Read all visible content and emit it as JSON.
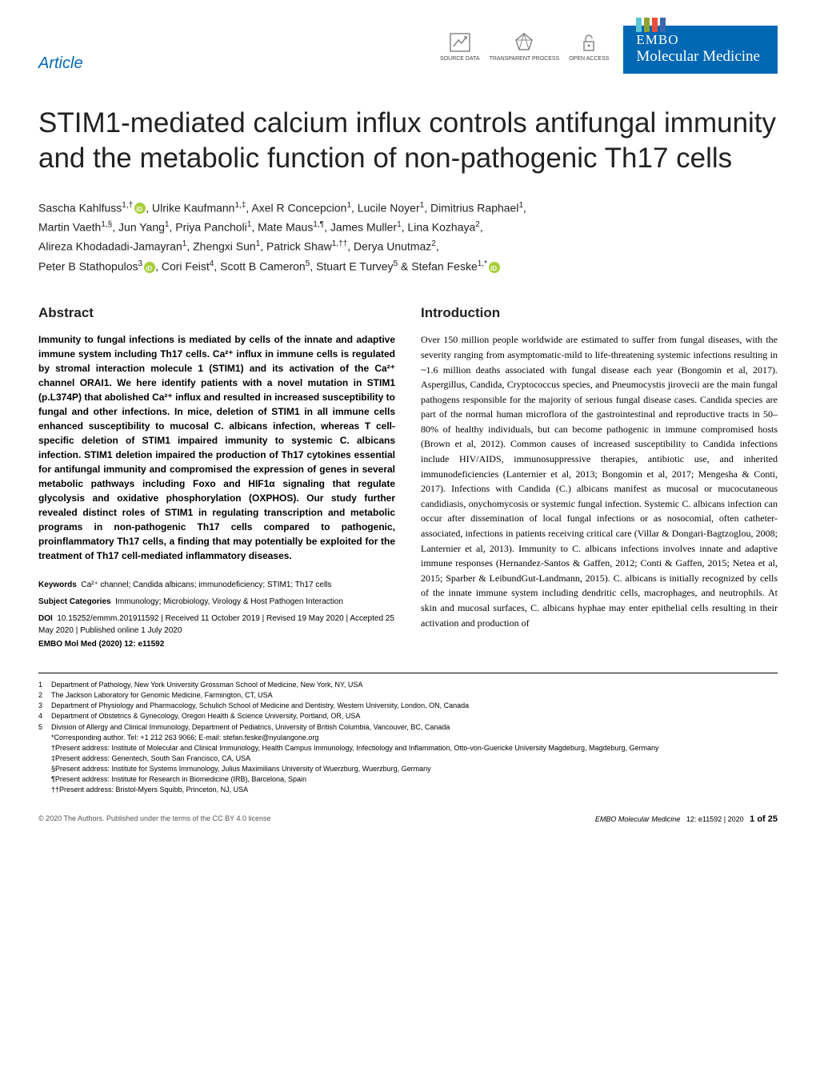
{
  "header": {
    "article_label": "Article",
    "badges": {
      "source_data": "SOURCE\nDATA",
      "transparent": "TRANSPARENT\nPROCESS",
      "open_access": "OPEN\nACCESS"
    },
    "journal": {
      "embo": "EMBO",
      "name": "Molecular Medicine",
      "stripe_colors": [
        "#5bc7d4",
        "#8fa02f",
        "#e94f3c",
        "#3b68b0"
      ]
    }
  },
  "title": "STIM1-mediated calcium influx controls antifungal immunity and the metabolic function of non-pathogenic Th17 cells",
  "authors_line1": "Sascha Kahlfuss",
  "authors_sup1": "1,†",
  "authors_line1b": ", Ulrike Kaufmann",
  "authors_sup1b": "1,‡",
  "authors_line1c": ", Axel R Concepcion",
  "authors_sup1c": "1",
  "authors_line1d": ", Lucile Noyer",
  "authors_sup1d": "1",
  "authors_line1e": ", Dimitrius Raphael",
  "authors_sup1e": "1",
  "authors_line1f": ",",
  "authors_line2": "Martin Vaeth",
  "authors_sup2": "1,§",
  "authors_line2b": ", Jun Yang",
  "authors_sup2b": "1",
  "authors_line2c": ", Priya Pancholi",
  "authors_sup2c": "1",
  "authors_line2d": ", Mate Maus",
  "authors_sup2d": "1,¶",
  "authors_line2e": ", James Muller",
  "authors_sup2e": "1",
  "authors_line2f": ", Lina Kozhaya",
  "authors_sup2f": "2",
  "authors_line2g": ",",
  "authors_line3": "Alireza Khodadadi-Jamayran",
  "authors_sup3": "1",
  "authors_line3b": ", Zhengxi Sun",
  "authors_sup3b": "1",
  "authors_line3c": ", Patrick Shaw",
  "authors_sup3c": "1,††",
  "authors_line3d": ", Derya Unutmaz",
  "authors_sup3d": "2",
  "authors_line3e": ",",
  "authors_line4": "Peter B Stathopulos",
  "authors_sup4": "3",
  "authors_line4b": ", Cori Feist",
  "authors_sup4b": "4",
  "authors_line4c": ", Scott B Cameron",
  "authors_sup4c": "5",
  "authors_line4d": ", Stuart E Turvey",
  "authors_sup4d": "5",
  "authors_line4e": " & Stefan Feske",
  "authors_sup4e": "1,*",
  "abstract_heading": "Abstract",
  "abstract_body": "Immunity to fungal infections is mediated by cells of the innate and adaptive immune system including Th17 cells. Ca²⁺ influx in immune cells is regulated by stromal interaction molecule 1 (STIM1) and its activation of the Ca²⁺ channel ORAI1. We here identify patients with a novel mutation in STIM1 (p.L374P) that abolished Ca²⁺ influx and resulted in increased susceptibility to fungal and other infections. In mice, deletion of STIM1 in all immune cells enhanced susceptibility to mucosal C. albicans infection, whereas T cell-specific deletion of STIM1 impaired immunity to systemic C. albicans infection. STIM1 deletion impaired the production of Th17 cytokines essential for antifungal immunity and compromised the expression of genes in several metabolic pathways including Foxo and HIF1α signaling that regulate glycolysis and oxidative phosphorylation (OXPHOS). Our study further revealed distinct roles of STIM1 in regulating transcription and metabolic programs in non-pathogenic Th17 cells compared to pathogenic, proinflammatory Th17 cells, a finding that may potentially be exploited for the treatment of Th17 cell-mediated inflammatory diseases.",
  "keywords_label": "Keywords",
  "keywords_body": "Ca²⁺ channel; Candida albicans; immunodeficiency; STIM1; Th17 cells",
  "subject_label": "Subject Categories",
  "subject_body": "Immunology; Microbiology, Virology & Host Pathogen Interaction",
  "doi_label": "DOI",
  "doi_body": "10.15252/emmm.201911592 | Received 11 October 2019 | Revised 19 May 2020 | Accepted 25 May 2020 | Published online 1 July 2020",
  "pubinfo": "EMBO Mol Med (2020) 12: e11592",
  "intro_heading": "Introduction",
  "intro_body": "Over 150 million people worldwide are estimated to suffer from fungal diseases, with the severity ranging from asymptomatic-mild to life-threatening systemic infections resulting in ~1.6 million deaths associated with fungal disease each year (Bongomin et al, 2017). Aspergillus, Candida, Cryptococcus species, and Pneumocystis jirovecii are the main fungal pathogens responsible for the majority of serious fungal disease cases. Candida species are part of the normal human microflora of the gastrointestinal and reproductive tracts in 50–80% of healthy individuals, but can become pathogenic in immune compromised hosts (Brown et al, 2012). Common causes of increased susceptibility to Candida infections include HIV/AIDS, immunosuppressive therapies, antibiotic use, and inherited immunodeficiencies (Lanternier et al, 2013; Bongomin et al, 2017; Mengesha & Conti, 2017). Infections with Candida (C.) albicans manifest as mucosal or mucocutaneous candidiasis, onychomycosis or systemic fungal infection. Systemic C. albicans infection can occur after dissemination of local fungal infections or as nosocomial, often catheter-associated, infections in patients receiving critical care (Villar & Dongari-Bagtzoglou, 2008; Lanternier et al, 2013). Immunity to C. albicans infections involves innate and adaptive immune responses (Hernandez-Santos & Gaffen, 2012; Conti & Gaffen, 2015; Netea et al, 2015; Sparber & LeibundGut-Landmann, 2015). C. albicans is initially recognized by cells of the innate immune system including dendritic cells, macrophages, and neutrophils. At skin and mucosal surfaces, C. albicans hyphae may enter epithelial cells resulting in their activation and production of",
  "affiliations": [
    {
      "n": "1",
      "text": "Department of Pathology, New York University Grossman School of Medicine, New York, NY, USA"
    },
    {
      "n": "2",
      "text": "The Jackson Laboratory for Genomic Medicine, Farmington, CT, USA"
    },
    {
      "n": "3",
      "text": "Department of Physiology and Pharmacology, Schulich School of Medicine and Dentistry, Western University, London, ON, Canada"
    },
    {
      "n": "4",
      "text": "Department of Obstetrics & Gynecology, Oregon Health & Science University, Portland, OR, USA"
    },
    {
      "n": "5",
      "text": "Division of Allergy and Clinical Immunology, Department of Pediatrics, University of British Columbia, Vancouver, BC, Canada"
    },
    {
      "n": "",
      "text": "*Corresponding author. Tel: +1 212 263 9066; E-mail: stefan.feske@nyulangone.org"
    },
    {
      "n": "",
      "text": "†Present address:  Institute of Molecular and Clinical Immunology, Health Campus Immunology, Infectiology and Inflammation, Otto-von-Guericke University Magdeburg, Magdeburg, Germany"
    },
    {
      "n": "",
      "text": "‡Present address:  Genentech, South San Francisco, CA, USA"
    },
    {
      "n": "",
      "text": "§Present address:  Institute for Systems Immunology, Julius Maximilians University of Wuerzburg, Wuerzburg, Germany"
    },
    {
      "n": "",
      "text": "¶Present address:  Institute for Research in Biomedicine (IRB), Barcelona, Spain"
    },
    {
      "n": "",
      "text": "††Present address:  Bristol-Myers Squibb, Princeton, NJ, USA"
    }
  ],
  "footer": {
    "left": "© 2020 The Authors. Published under the terms of the CC BY 4.0 license",
    "right_journal": "EMBO Molecular Medicine",
    "right_vol": "12: e11592 | 2020",
    "right_page": "1 of 25"
  }
}
